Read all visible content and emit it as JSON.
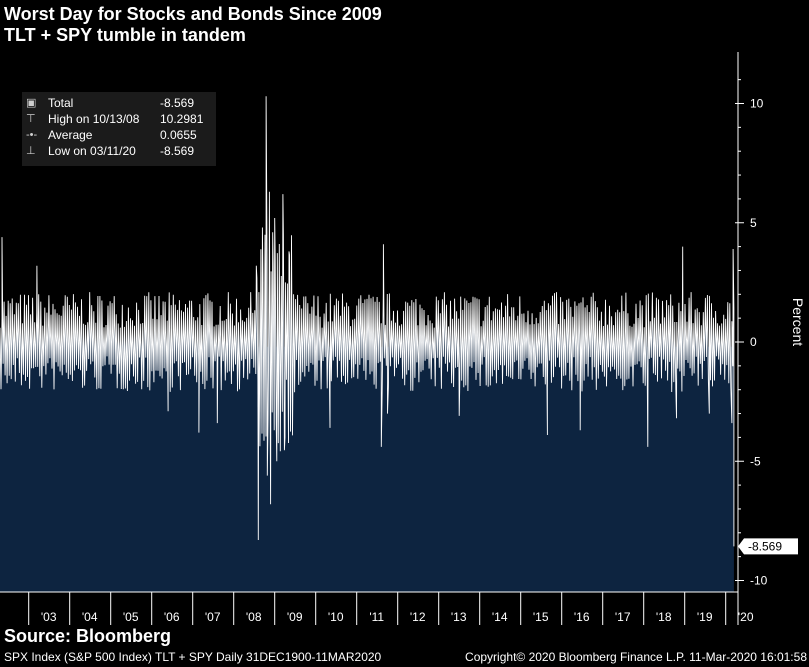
{
  "header": {
    "title": "Worst Day for Stocks and Bonds Since 2009",
    "subtitle": "TLT + SPY tumble in tandem"
  },
  "legend": {
    "rows": [
      {
        "icon": "box-icon",
        "name": "Total",
        "value": "-8.569"
      },
      {
        "icon": "high-marker-icon",
        "name": "High on 10/13/08",
        "value": "10.2981"
      },
      {
        "icon": "average-marker-icon",
        "name": "Average",
        "value": "0.0655"
      },
      {
        "icon": "low-marker-icon",
        "name": "Low on 03/11/20",
        "value": "-8.569"
      }
    ]
  },
  "footer": {
    "source": "Source: Bloomberg",
    "left": "SPX Index (S&P 500 Index) TLT + SPY  Daily 31DEC1900-11MAR2020",
    "right": "Copyright© 2020 Bloomberg Finance L.P.   11-Mar-2020 16:01:58"
  },
  "colors": {
    "background": "#000000",
    "fill": "#0d2440",
    "line": "#ffffff",
    "legend_bg": "#1b1b1b"
  },
  "chart_data": {
    "type": "area",
    "title": "Worst Day for Stocks and Bonds Since 2009",
    "subtitle": "TLT + SPY tumble in tandem",
    "ylabel": "Percent",
    "ylim": [
      -10.5,
      12
    ],
    "xlim": [
      2002.3,
      2020.3
    ],
    "y_ticks": [
      10,
      5,
      0,
      -5,
      -10
    ],
    "x_ticks": [
      "'03",
      "'04",
      "'05",
      "'06",
      "'07",
      "'08",
      "'09",
      "'10",
      "'11",
      "'12",
      "'13",
      "'14",
      "'15",
      "'16",
      "'17",
      "'18",
      "'19",
      "'20"
    ],
    "last_value_label": "-8.569",
    "last_value": -8.569,
    "grid": false,
    "series": [
      {
        "name": "Total",
        "baseline": "typical daily band approx -1.3 to +1.3",
        "notable_points": [
          {
            "x": 2002.35,
            "y": 4.4
          },
          {
            "x": 2003.2,
            "y": 3.2
          },
          {
            "x": 2006.4,
            "y": -2.9
          },
          {
            "x": 2007.15,
            "y": -3.8
          },
          {
            "x": 2007.6,
            "y": -3.4
          },
          {
            "x": 2008.55,
            "y": 3.2
          },
          {
            "x": 2008.6,
            "y": -8.3
          },
          {
            "x": 2008.7,
            "y": 4.8
          },
          {
            "x": 2008.79,
            "y": 10.3
          },
          {
            "x": 2008.82,
            "y": -5.6
          },
          {
            "x": 2008.87,
            "y": 6.3
          },
          {
            "x": 2008.9,
            "y": -6.8
          },
          {
            "x": 2008.95,
            "y": 4.6
          },
          {
            "x": 2009.0,
            "y": 5.2
          },
          {
            "x": 2009.05,
            "y": -5.0
          },
          {
            "x": 2009.2,
            "y": 6.2
          },
          {
            "x": 2009.25,
            "y": -4.0
          },
          {
            "x": 2009.35,
            "y": 3.8
          },
          {
            "x": 2010.35,
            "y": -3.6
          },
          {
            "x": 2011.6,
            "y": -4.4
          },
          {
            "x": 2011.65,
            "y": 4.1
          },
          {
            "x": 2011.75,
            "y": -3.0
          },
          {
            "x": 2013.5,
            "y": -3.1
          },
          {
            "x": 2015.65,
            "y": -3.9
          },
          {
            "x": 2016.45,
            "y": -3.7
          },
          {
            "x": 2018.1,
            "y": -4.4
          },
          {
            "x": 2018.8,
            "y": -3.2
          },
          {
            "x": 2018.95,
            "y": 4.0
          },
          {
            "x": 2019.6,
            "y": -3.0
          },
          {
            "x": 2020.15,
            "y": -3.4
          },
          {
            "x": 2020.18,
            "y": 3.9
          },
          {
            "x": 2020.2,
            "y": -8.569
          }
        ]
      }
    ]
  }
}
